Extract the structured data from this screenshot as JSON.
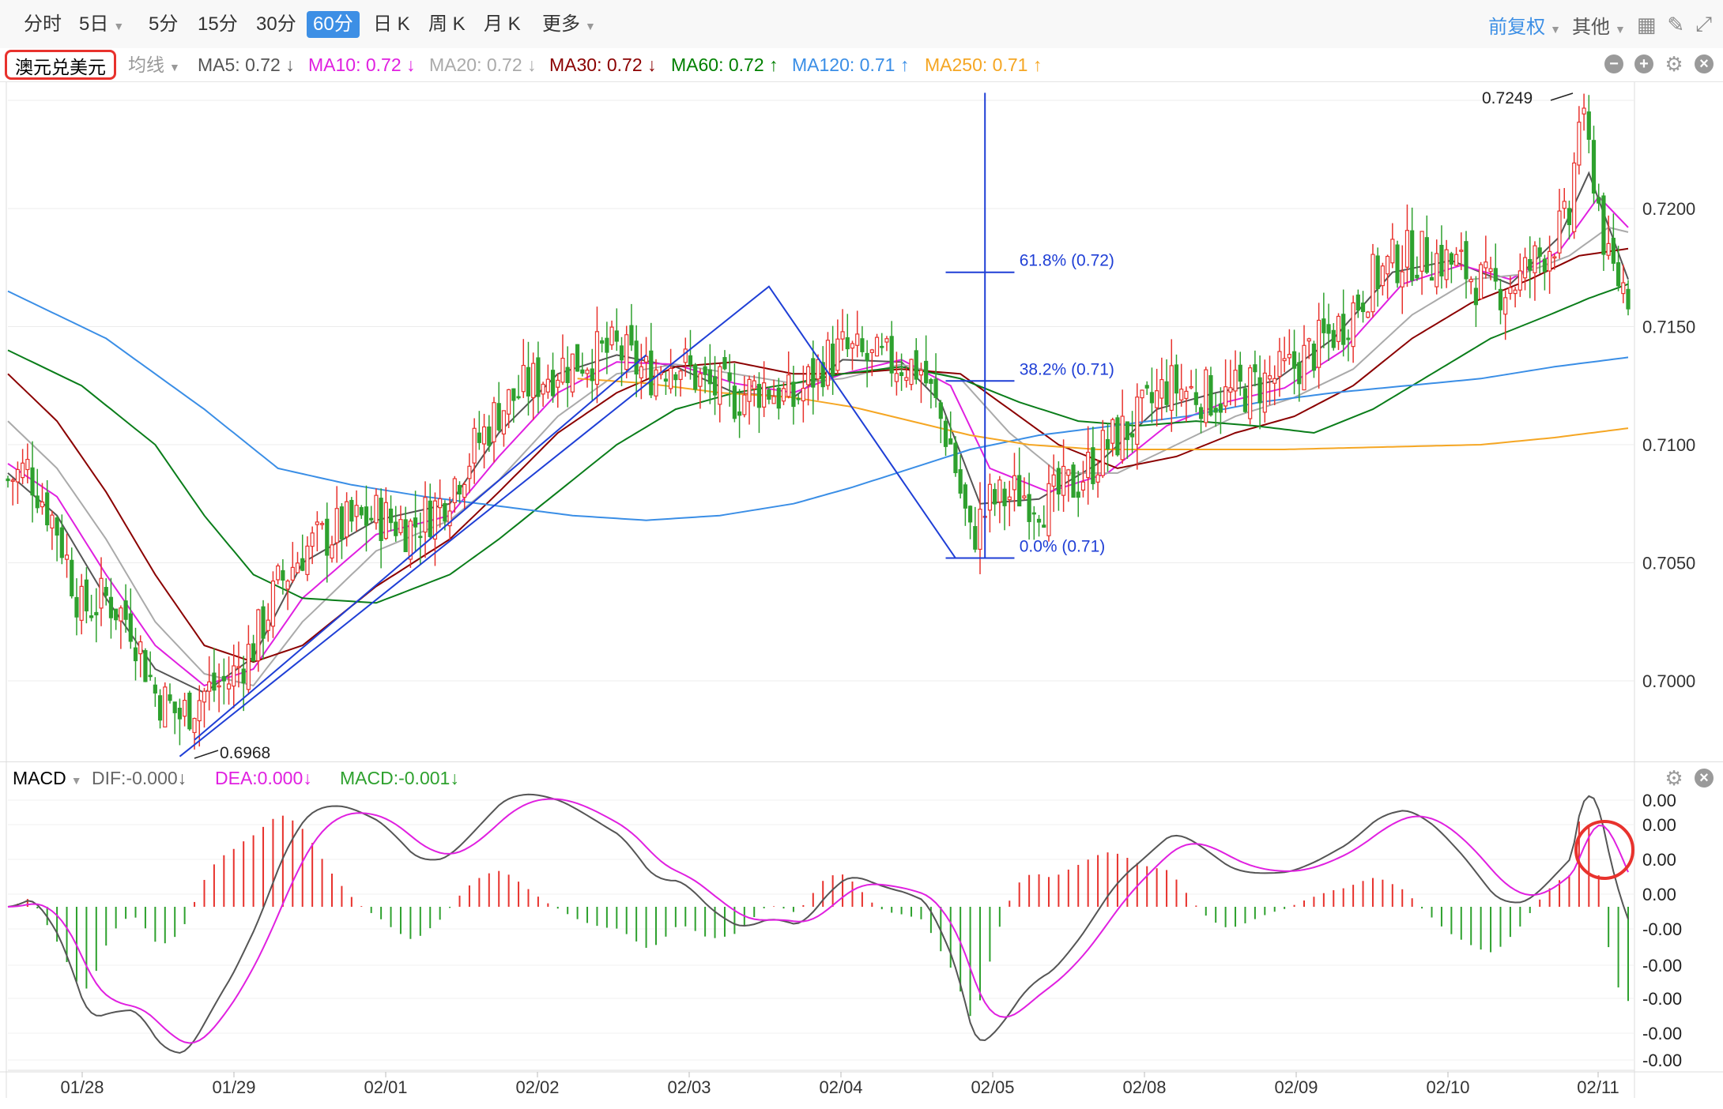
{
  "toolbar": {
    "tabs": [
      "分时",
      "5日",
      "5分",
      "15分",
      "30分",
      "60分",
      "日 K",
      "周 K",
      "月 K",
      "更多"
    ],
    "active_tab": "60分",
    "adjust_label": "前复权",
    "other_label": "其他"
  },
  "indicator_bar": {
    "symbol": "澳元兑美元",
    "ma_selector": "均线",
    "ma_items": [
      {
        "label": "MA5: 0.72",
        "arrow": "↓",
        "color": "#555555"
      },
      {
        "label": "MA10: 0.72",
        "arrow": "↓",
        "color": "#e020e0"
      },
      {
        "label": "MA20: 0.72",
        "arrow": "↓",
        "color": "#aaaaaa"
      },
      {
        "label": "MA30: 0.72",
        "arrow": "↓",
        "color": "#8b0000"
      },
      {
        "label": "MA60: 0.72",
        "arrow": "↑",
        "color": "#008000"
      },
      {
        "label": "MA120: 0.71",
        "arrow": "↑",
        "color": "#3a8ee6"
      },
      {
        "label": "MA250: 0.71",
        "arrow": "↑",
        "color": "#f5a623"
      }
    ]
  },
  "macd_bar": {
    "name": "MACD",
    "dif": "DIF:-0.000",
    "dea": "DEA:0.000",
    "macd": "MACD:-0.001",
    "arrow": "↓"
  },
  "chart_data": {
    "type": "candlestick",
    "title": "澳元兑美元",
    "period": "60分",
    "x_tick_labels": [
      "01/28",
      "01/29",
      "02/01",
      "02/02",
      "02/03",
      "02/04",
      "02/05",
      "02/08",
      "02/09",
      "02/10",
      "02/11"
    ],
    "y_tick_labels": [
      "0.7200",
      "0.7150",
      "0.7100",
      "0.7050",
      "0.7000"
    ],
    "ylim": [
      0.6968,
      0.7249
    ],
    "annotations": {
      "low": "0.6968",
      "high": "0.7249",
      "fib_levels": [
        "61.8% (0.72)",
        "38.2% (0.71)",
        "0.0% (0.71)"
      ]
    },
    "colors": {
      "up": "#e8322d",
      "down": "#2ea12e"
    },
    "macd_y_tick_labels": [
      "0.00",
      "0.00",
      "0.00",
      "0.00",
      "-0.00",
      "-0.00",
      "-0.00",
      "-0.00",
      "-0.00"
    ],
    "close_path": [
      [
        0,
        0.7085
      ],
      [
        4,
        0.709
      ],
      [
        10,
        0.7065
      ],
      [
        15,
        0.703
      ],
      [
        20,
        0.7035
      ],
      [
        25,
        0.7025
      ],
      [
        30,
        0.6995
      ],
      [
        35,
        0.6985
      ],
      [
        40,
        0.6995
      ],
      [
        45,
        0.7
      ],
      [
        50,
        0.7015
      ],
      [
        55,
        0.704
      ],
      [
        60,
        0.7055
      ],
      [
        68,
        0.7065
      ],
      [
        75,
        0.707
      ],
      [
        82,
        0.7065
      ],
      [
        88,
        0.7075
      ],
      [
        94,
        0.7095
      ],
      [
        100,
        0.7115
      ],
      [
        106,
        0.7125
      ],
      [
        112,
        0.7133
      ],
      [
        118,
        0.7137
      ],
      [
        124,
        0.714
      ],
      [
        130,
        0.713
      ],
      [
        136,
        0.7137
      ],
      [
        142,
        0.7125
      ],
      [
        148,
        0.712
      ],
      [
        154,
        0.7125
      ],
      [
        160,
        0.7118
      ],
      [
        166,
        0.7135
      ],
      [
        170,
        0.714
      ],
      [
        176,
        0.7135
      ],
      [
        182,
        0.7135
      ],
      [
        186,
        0.7132
      ],
      [
        192,
        0.71
      ],
      [
        196,
        0.706
      ],
      [
        200,
        0.7075
      ],
      [
        206,
        0.708
      ],
      [
        212,
        0.7075
      ],
      [
        218,
        0.7085
      ],
      [
        224,
        0.71
      ],
      [
        230,
        0.711
      ],
      [
        236,
        0.7125
      ],
      [
        242,
        0.7122
      ],
      [
        248,
        0.712
      ],
      [
        254,
        0.7125
      ],
      [
        260,
        0.713
      ],
      [
        266,
        0.714
      ],
      [
        272,
        0.7152
      ],
      [
        278,
        0.717
      ],
      [
        284,
        0.718
      ],
      [
        290,
        0.718
      ],
      [
        296,
        0.7175
      ],
      [
        302,
        0.7165
      ],
      [
        308,
        0.717
      ],
      [
        314,
        0.7185
      ],
      [
        318,
        0.7195
      ],
      [
        320,
        0.724
      ],
      [
        323,
        0.7215
      ],
      [
        326,
        0.7175
      ],
      [
        330,
        0.7165
      ]
    ],
    "ma_paths": {
      "MA5": [
        [
          0,
          0.7088
        ],
        [
          10,
          0.707
        ],
        [
          20,
          0.7035
        ],
        [
          30,
          0.7005
        ],
        [
          40,
          0.6995
        ],
        [
          50,
          0.701
        ],
        [
          60,
          0.705
        ],
        [
          75,
          0.7068
        ],
        [
          90,
          0.7075
        ],
        [
          100,
          0.7105
        ],
        [
          112,
          0.713
        ],
        [
          124,
          0.7138
        ],
        [
          136,
          0.7133
        ],
        [
          148,
          0.7122
        ],
        [
          160,
          0.712
        ],
        [
          170,
          0.7136
        ],
        [
          182,
          0.7135
        ],
        [
          190,
          0.7118
        ],
        [
          198,
          0.7075
        ],
        [
          210,
          0.7077
        ],
        [
          222,
          0.7092
        ],
        [
          234,
          0.7115
        ],
        [
          246,
          0.7122
        ],
        [
          258,
          0.7127
        ],
        [
          270,
          0.7145
        ],
        [
          282,
          0.7173
        ],
        [
          294,
          0.7178
        ],
        [
          306,
          0.7168
        ],
        [
          316,
          0.7188
        ],
        [
          322,
          0.7215
        ],
        [
          330,
          0.717
        ]
      ],
      "MA10": [
        [
          0,
          0.7092
        ],
        [
          10,
          0.7078
        ],
        [
          20,
          0.7045
        ],
        [
          30,
          0.7015
        ],
        [
          40,
          0.6998
        ],
        [
          50,
          0.7005
        ],
        [
          60,
          0.7035
        ],
        [
          75,
          0.7062
        ],
        [
          90,
          0.707
        ],
        [
          100,
          0.7095
        ],
        [
          112,
          0.7122
        ],
        [
          124,
          0.7135
        ],
        [
          136,
          0.7134
        ],
        [
          148,
          0.7126
        ],
        [
          160,
          0.7122
        ],
        [
          170,
          0.713
        ],
        [
          182,
          0.7136
        ],
        [
          192,
          0.7125
        ],
        [
          200,
          0.709
        ],
        [
          212,
          0.708
        ],
        [
          224,
          0.7088
        ],
        [
          236,
          0.7108
        ],
        [
          248,
          0.7118
        ],
        [
          260,
          0.7124
        ],
        [
          272,
          0.714
        ],
        [
          284,
          0.7168
        ],
        [
          296,
          0.7176
        ],
        [
          306,
          0.717
        ],
        [
          316,
          0.7182
        ],
        [
          324,
          0.7205
        ],
        [
          330,
          0.7192
        ]
      ],
      "MA20": [
        [
          0,
          0.711
        ],
        [
          10,
          0.709
        ],
        [
          20,
          0.706
        ],
        [
          30,
          0.7025
        ],
        [
          40,
          0.7003
        ],
        [
          50,
          0.6998
        ],
        [
          60,
          0.7025
        ],
        [
          75,
          0.7055
        ],
        [
          90,
          0.7068
        ],
        [
          100,
          0.7085
        ],
        [
          112,
          0.7112
        ],
        [
          124,
          0.713
        ],
        [
          136,
          0.7134
        ],
        [
          148,
          0.713
        ],
        [
          160,
          0.7126
        ],
        [
          170,
          0.7128
        ],
        [
          182,
          0.7134
        ],
        [
          194,
          0.7128
        ],
        [
          204,
          0.7105
        ],
        [
          214,
          0.7088
        ],
        [
          226,
          0.7088
        ],
        [
          238,
          0.71
        ],
        [
          250,
          0.7112
        ],
        [
          262,
          0.712
        ],
        [
          274,
          0.7132
        ],
        [
          286,
          0.7155
        ],
        [
          298,
          0.717
        ],
        [
          308,
          0.7172
        ],
        [
          318,
          0.718
        ],
        [
          326,
          0.7192
        ],
        [
          330,
          0.719
        ]
      ],
      "MA30": [
        [
          0,
          0.713
        ],
        [
          10,
          0.711
        ],
        [
          20,
          0.708
        ],
        [
          30,
          0.7045
        ],
        [
          40,
          0.7015
        ],
        [
          50,
          0.7008
        ],
        [
          60,
          0.7015
        ],
        [
          75,
          0.704
        ],
        [
          90,
          0.706
        ],
        [
          100,
          0.708
        ],
        [
          112,
          0.7105
        ],
        [
          124,
          0.7122
        ],
        [
          136,
          0.7133
        ],
        [
          148,
          0.7135
        ],
        [
          160,
          0.713
        ],
        [
          170,
          0.713
        ],
        [
          182,
          0.7132
        ],
        [
          194,
          0.713
        ],
        [
          204,
          0.7115
        ],
        [
          214,
          0.71
        ],
        [
          226,
          0.709
        ],
        [
          238,
          0.7095
        ],
        [
          250,
          0.7105
        ],
        [
          262,
          0.7112
        ],
        [
          274,
          0.7125
        ],
        [
          286,
          0.7145
        ],
        [
          298,
          0.716
        ],
        [
          310,
          0.717
        ],
        [
          320,
          0.718
        ],
        [
          330,
          0.7183
        ]
      ],
      "MA60": [
        [
          0,
          0.714
        ],
        [
          15,
          0.7125
        ],
        [
          30,
          0.71
        ],
        [
          40,
          0.707
        ],
        [
          50,
          0.7045
        ],
        [
          60,
          0.7035
        ],
        [
          75,
          0.7033
        ],
        [
          90,
          0.7045
        ],
        [
          100,
          0.706
        ],
        [
          112,
          0.708
        ],
        [
          124,
          0.71
        ],
        [
          136,
          0.7115
        ],
        [
          148,
          0.7122
        ],
        [
          160,
          0.7126
        ],
        [
          170,
          0.713
        ],
        [
          182,
          0.7133
        ],
        [
          194,
          0.7128
        ],
        [
          206,
          0.7118
        ],
        [
          218,
          0.711
        ],
        [
          230,
          0.7108
        ],
        [
          242,
          0.711
        ],
        [
          254,
          0.7108
        ],
        [
          266,
          0.7105
        ],
        [
          278,
          0.7115
        ],
        [
          290,
          0.713
        ],
        [
          302,
          0.7145
        ],
        [
          314,
          0.7155
        ],
        [
          322,
          0.7162
        ],
        [
          330,
          0.7168
        ]
      ],
      "MA120": [
        [
          0,
          0.7165
        ],
        [
          20,
          0.7145
        ],
        [
          40,
          0.7115
        ],
        [
          55,
          0.709
        ],
        [
          70,
          0.7083
        ],
        [
          85,
          0.7078
        ],
        [
          100,
          0.7074
        ],
        [
          115,
          0.707
        ],
        [
          130,
          0.7068
        ],
        [
          145,
          0.707
        ],
        [
          160,
          0.7075
        ],
        [
          172,
          0.7082
        ],
        [
          184,
          0.709
        ],
        [
          196,
          0.7098
        ],
        [
          210,
          0.7104
        ],
        [
          225,
          0.7108
        ],
        [
          240,
          0.7112
        ],
        [
          255,
          0.7118
        ],
        [
          270,
          0.7122
        ],
        [
          285,
          0.7125
        ],
        [
          300,
          0.7128
        ],
        [
          315,
          0.7133
        ],
        [
          330,
          0.7137
        ]
      ],
      "MA250": [
        [
          116,
          0.7128
        ],
        [
          130,
          0.7126
        ],
        [
          145,
          0.7122
        ],
        [
          160,
          0.712
        ],
        [
          172,
          0.7116
        ],
        [
          184,
          0.711
        ],
        [
          196,
          0.7104
        ],
        [
          208,
          0.71
        ],
        [
          222,
          0.7098
        ],
        [
          240,
          0.7098
        ],
        [
          260,
          0.7098
        ],
        [
          280,
          0.7099
        ],
        [
          300,
          0.71
        ],
        [
          315,
          0.7103
        ],
        [
          330,
          0.7107
        ]
      ]
    }
  }
}
